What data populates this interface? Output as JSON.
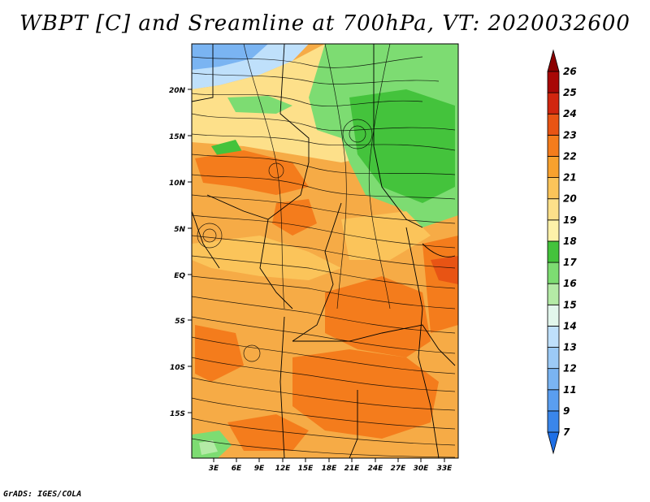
{
  "title": "WBPT [C] and Sreamline at 700hPa, VT: 2020032600",
  "credit": "GrADS: IGES/COLA",
  "axes": {
    "lat_ticks": [
      "20N",
      "15N",
      "10N",
      "5N",
      "EQ",
      "5S",
      "10S",
      "15S"
    ],
    "lon_ticks": [
      "3E",
      "6E",
      "9E",
      "12E",
      "15E",
      "18E",
      "21E",
      "24E",
      "27E",
      "30E",
      "33E"
    ]
  },
  "colorbar": {
    "labels": [
      "7",
      "9",
      "11",
      "12",
      "13",
      "14",
      "15",
      "16",
      "17",
      "18",
      "19",
      "20",
      "21",
      "22",
      "23",
      "24",
      "25",
      "26"
    ],
    "colors": [
      "#1e6fe6",
      "#3a86ea",
      "#5a9ef0",
      "#7ab4f2",
      "#9ccaf6",
      "#bfe0fb",
      "#e2f6ec",
      "#b4eaa6",
      "#7ddc72",
      "#44c33c",
      "#fdf1a9",
      "#fde08a",
      "#fbc45a",
      "#f8a12e",
      "#f47c1c",
      "#e85414",
      "#d1260f",
      "#a80806",
      "#8b0000"
    ]
  }
}
